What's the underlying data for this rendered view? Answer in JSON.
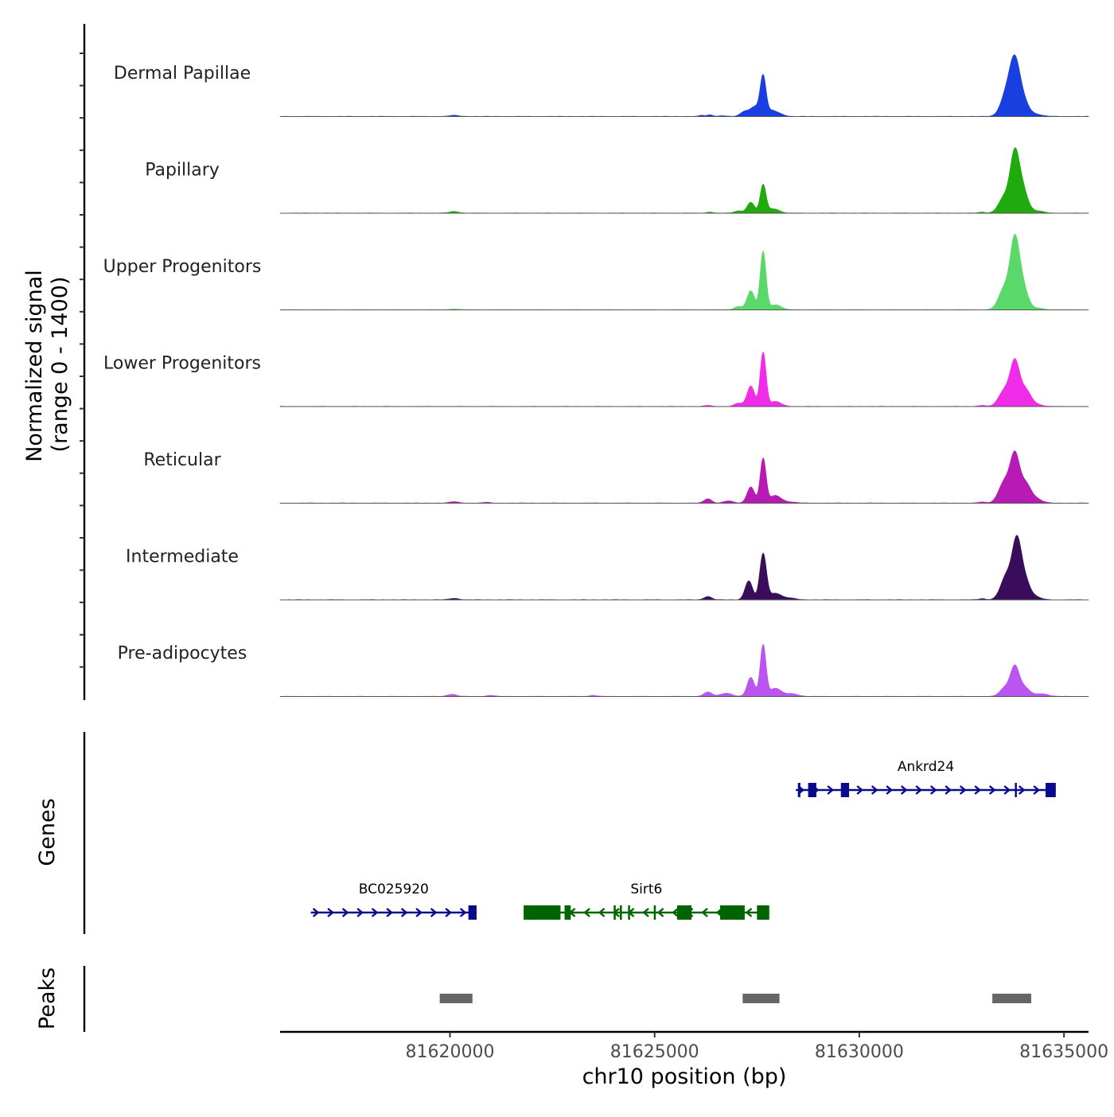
{
  "chart_data": {
    "type": "area",
    "title": "",
    "region": {
      "chromosome": "chr10",
      "start": 81615850,
      "end": 81635600
    },
    "xlabel": "chr10 position (bp)",
    "xticks": [
      81620000,
      81625000,
      81630000,
      81635000
    ],
    "ylabel_line1": "Normalized signal",
    "ylabel_line2": "(range 0 - 1400)",
    "ylim": [
      0,
      1400
    ],
    "coverage_tracks": [
      {
        "name": "Dermal Papillae",
        "color": "#1a3fe0",
        "peaks": [
          {
            "pos": 81626150,
            "height": 22,
            "width": 60
          },
          {
            "pos": 81626350,
            "height": 30,
            "width": 70
          },
          {
            "pos": 81626650,
            "height": 14,
            "width": 80
          },
          {
            "pos": 81627200,
            "height": 90,
            "width": 100
          },
          {
            "pos": 81627450,
            "height": 180,
            "width": 110
          },
          {
            "pos": 81627650,
            "height": 720,
            "width": 70
          },
          {
            "pos": 81627850,
            "height": 100,
            "width": 120
          },
          {
            "pos": 81628050,
            "height": 40,
            "width": 120
          },
          {
            "pos": 81633600,
            "height": 420,
            "width": 140
          },
          {
            "pos": 81633800,
            "height": 900,
            "width": 120
          },
          {
            "pos": 81634000,
            "height": 280,
            "width": 130
          },
          {
            "pos": 81634300,
            "height": 40,
            "width": 160
          },
          {
            "pos": 81620100,
            "height": 20,
            "width": 110
          }
        ]
      },
      {
        "name": "Papillary",
        "color": "#1fab0d",
        "peaks": [
          {
            "pos": 81626350,
            "height": 20,
            "width": 70
          },
          {
            "pos": 81627050,
            "height": 40,
            "width": 100
          },
          {
            "pos": 81627350,
            "height": 200,
            "width": 90
          },
          {
            "pos": 81627650,
            "height": 520,
            "width": 70
          },
          {
            "pos": 81627900,
            "height": 80,
            "width": 140
          },
          {
            "pos": 81633000,
            "height": 18,
            "width": 80
          },
          {
            "pos": 81633550,
            "height": 300,
            "width": 140
          },
          {
            "pos": 81633800,
            "height": 1050,
            "width": 110
          },
          {
            "pos": 81634000,
            "height": 400,
            "width": 120
          },
          {
            "pos": 81634350,
            "height": 40,
            "width": 150
          },
          {
            "pos": 81620100,
            "height": 30,
            "width": 110
          }
        ]
      },
      {
        "name": "Upper Progenitors",
        "color": "#5ad96a",
        "peaks": [
          {
            "pos": 81627050,
            "height": 60,
            "width": 100
          },
          {
            "pos": 81627350,
            "height": 350,
            "width": 90
          },
          {
            "pos": 81627650,
            "height": 1080,
            "width": 70
          },
          {
            "pos": 81627950,
            "height": 90,
            "width": 140
          },
          {
            "pos": 81633550,
            "height": 400,
            "width": 140
          },
          {
            "pos": 81633800,
            "height": 1220,
            "width": 110
          },
          {
            "pos": 81634000,
            "height": 400,
            "width": 120
          },
          {
            "pos": 81634350,
            "height": 30,
            "width": 150
          },
          {
            "pos": 81620100,
            "height": 14,
            "width": 110
          }
        ]
      },
      {
        "name": "Lower Progenitors",
        "color": "#f02ce8",
        "peaks": [
          {
            "pos": 81626300,
            "height": 20,
            "width": 80
          },
          {
            "pos": 81627050,
            "height": 60,
            "width": 100
          },
          {
            "pos": 81627350,
            "height": 380,
            "width": 90
          },
          {
            "pos": 81627650,
            "height": 1000,
            "width": 70
          },
          {
            "pos": 81627950,
            "height": 90,
            "width": 140
          },
          {
            "pos": 81633000,
            "height": 20,
            "width": 80
          },
          {
            "pos": 81633550,
            "height": 300,
            "width": 140
          },
          {
            "pos": 81633800,
            "height": 780,
            "width": 110
          },
          {
            "pos": 81634050,
            "height": 300,
            "width": 130
          },
          {
            "pos": 81634300,
            "height": 40,
            "width": 150
          }
        ]
      },
      {
        "name": "Reticular",
        "color": "#b81ab5",
        "peaks": [
          {
            "pos": 81626300,
            "height": 80,
            "width": 90
          },
          {
            "pos": 81626800,
            "height": 40,
            "width": 110
          },
          {
            "pos": 81627350,
            "height": 300,
            "width": 90
          },
          {
            "pos": 81627650,
            "height": 820,
            "width": 70
          },
          {
            "pos": 81627950,
            "height": 140,
            "width": 140
          },
          {
            "pos": 81628300,
            "height": 20,
            "width": 140
          },
          {
            "pos": 81633000,
            "height": 20,
            "width": 80
          },
          {
            "pos": 81633550,
            "height": 400,
            "width": 140
          },
          {
            "pos": 81633800,
            "height": 830,
            "width": 110
          },
          {
            "pos": 81634050,
            "height": 350,
            "width": 130
          },
          {
            "pos": 81634300,
            "height": 80,
            "width": 150
          },
          {
            "pos": 81620100,
            "height": 25,
            "width": 110
          },
          {
            "pos": 81620900,
            "height": 14,
            "width": 80
          }
        ]
      },
      {
        "name": "Intermediate",
        "color": "#3a0d5c",
        "peaks": [
          {
            "pos": 81626300,
            "height": 60,
            "width": 90
          },
          {
            "pos": 81627300,
            "height": 350,
            "width": 90
          },
          {
            "pos": 81627650,
            "height": 850,
            "width": 80
          },
          {
            "pos": 81627950,
            "height": 120,
            "width": 140
          },
          {
            "pos": 81628300,
            "height": 30,
            "width": 140
          },
          {
            "pos": 81633000,
            "height": 20,
            "width": 80
          },
          {
            "pos": 81633600,
            "height": 450,
            "width": 140
          },
          {
            "pos": 81633850,
            "height": 1020,
            "width": 110
          },
          {
            "pos": 81634050,
            "height": 330,
            "width": 120
          },
          {
            "pos": 81634300,
            "height": 50,
            "width": 140
          },
          {
            "pos": 81620100,
            "height": 25,
            "width": 110
          }
        ]
      },
      {
        "name": "Pre-adipocytes",
        "color": "#bb55ef",
        "peaks": [
          {
            "pos": 81626300,
            "height": 80,
            "width": 100
          },
          {
            "pos": 81626750,
            "height": 60,
            "width": 140
          },
          {
            "pos": 81627350,
            "height": 350,
            "width": 90
          },
          {
            "pos": 81627650,
            "height": 950,
            "width": 70
          },
          {
            "pos": 81627950,
            "height": 150,
            "width": 140
          },
          {
            "pos": 81628350,
            "height": 50,
            "width": 150
          },
          {
            "pos": 81633550,
            "height": 150,
            "width": 120
          },
          {
            "pos": 81633800,
            "height": 550,
            "width": 110
          },
          {
            "pos": 81634050,
            "height": 150,
            "width": 120
          },
          {
            "pos": 81634450,
            "height": 50,
            "width": 160
          },
          {
            "pos": 81620050,
            "height": 40,
            "width": 110
          },
          {
            "pos": 81621000,
            "height": 20,
            "width": 90
          },
          {
            "pos": 81623500,
            "height": 20,
            "width": 90
          }
        ]
      }
    ],
    "genes_label": "Genes",
    "genes": [
      {
        "name": "Ankrd24",
        "strand": "+",
        "color": "#0a0a8c",
        "row": 1,
        "start": 81628450,
        "end": 81634800,
        "exons": [
          [
            81628500,
            81628560
          ],
          [
            81628750,
            81628950
          ],
          [
            81629550,
            81629750
          ],
          [
            81633800,
            81633830
          ],
          [
            81634550,
            81634800
          ]
        ]
      },
      {
        "name": "BC025920",
        "strand": "+",
        "color": "#0a0a8c",
        "row": 2,
        "start": 81616600,
        "end": 81620650,
        "exons": [
          [
            81620450,
            81620650
          ]
        ]
      },
      {
        "name": "Sirt6",
        "strand": "-",
        "color": "#006400",
        "row": 2,
        "start": 81621800,
        "end": 81627800,
        "exons": [
          [
            81621800,
            81622700
          ],
          [
            81622800,
            81622950
          ],
          [
            81624000,
            81624050
          ],
          [
            81624150,
            81624200
          ],
          [
            81624350,
            81624400
          ],
          [
            81624980,
            81625020
          ],
          [
            81625550,
            81625900
          ],
          [
            81626600,
            81627200
          ],
          [
            81627500,
            81627800
          ]
        ]
      }
    ],
    "peaks_label": "Peaks",
    "peak_regions": [
      {
        "start": 81619750,
        "end": 81620550
      },
      {
        "start": 81627150,
        "end": 81628050
      },
      {
        "start": 81633250,
        "end": 81634200
      }
    ]
  }
}
